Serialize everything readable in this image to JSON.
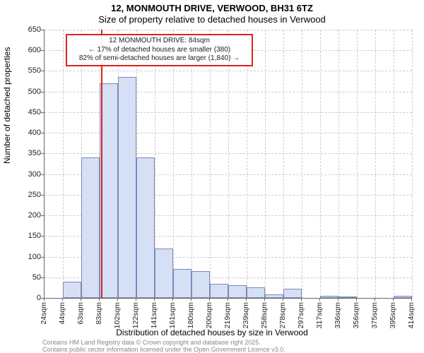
{
  "title_main": "12, MONMOUTH DRIVE, VERWOOD, BH31 6TZ",
  "title_sub": "Size of property relative to detached houses in Verwood",
  "ylabel": "Number of detached properties",
  "xlabel": "Distribution of detached houses by size in Verwood",
  "footer1": "Contains HM Land Registry data © Crown copyright and database right 2025.",
  "footer2": "Contains public sector information licensed under the Open Government Licence v3.0.",
  "annotation": {
    "line1": "12 MONMOUTH DRIVE: 84sqm",
    "line2": "← 17% of detached houses are smaller (380)",
    "line3": "82% of semi-detached houses are larger (1,840) →"
  },
  "chart": {
    "type": "histogram",
    "ylim": [
      0,
      650
    ],
    "ytick_step": 50,
    "background_color": "#ffffff",
    "grid_color": "#cccccc",
    "axis_color": "#666666",
    "bar_fill": "#d6e0f5",
    "bar_border": "#7a8ab8",
    "marker_color": "#dd2222",
    "marker_x_value": 84,
    "categories": [
      "24sqm",
      "44sqm",
      "63sqm",
      "83sqm",
      "102sqm",
      "122sqm",
      "141sqm",
      "161sqm",
      "180sqm",
      "200sqm",
      "219sqm",
      "239sqm",
      "258sqm",
      "278sqm",
      "297sqm",
      "317sqm",
      "336sqm",
      "356sqm",
      "375sqm",
      "395sqm",
      "414sqm"
    ],
    "values": [
      0,
      40,
      340,
      520,
      535,
      340,
      120,
      70,
      65,
      35,
      30,
      25,
      8,
      22,
      0,
      5,
      3,
      0,
      0,
      5
    ]
  }
}
